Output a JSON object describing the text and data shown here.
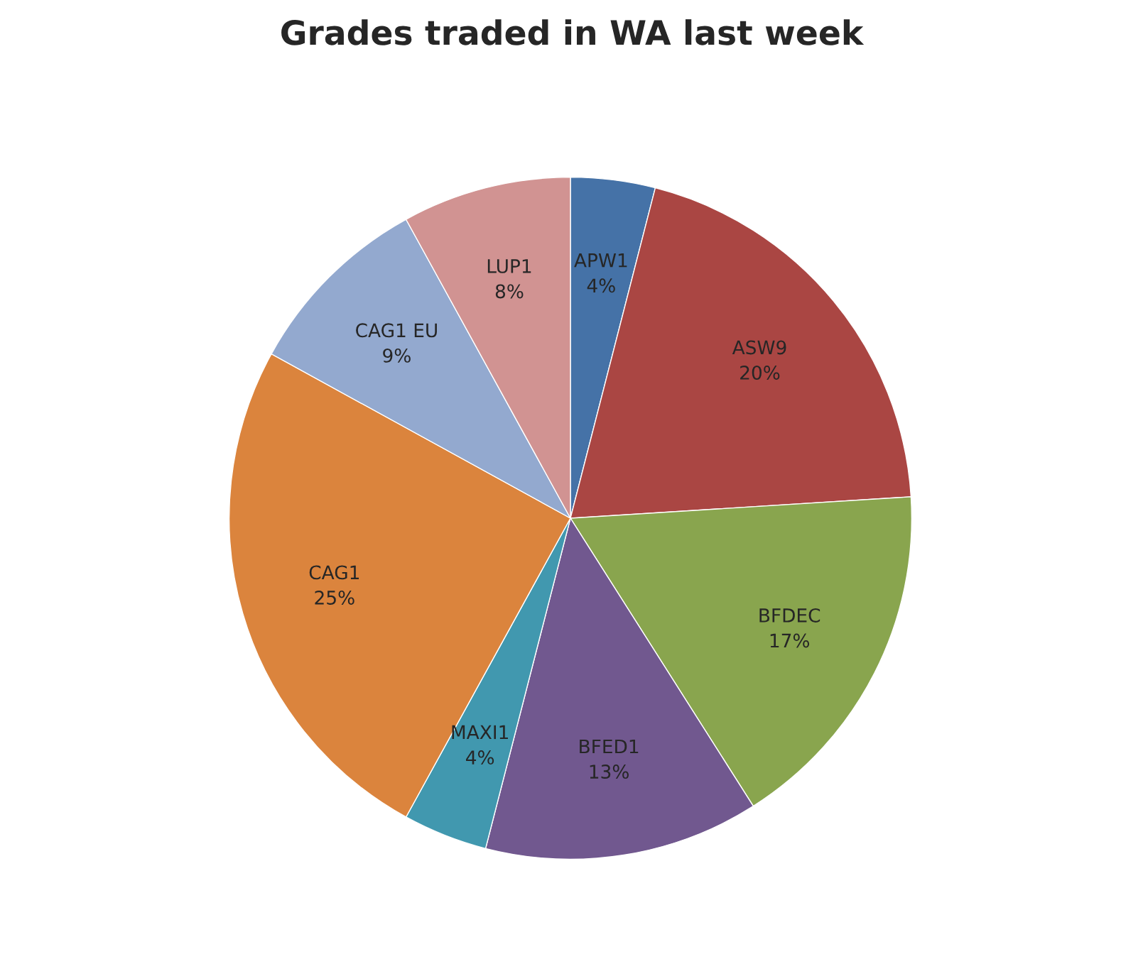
{
  "chart_data": {
    "type": "pie",
    "title": "Grades traded in WA last week",
    "categories": [
      "APW1",
      "ASW9",
      "BFDEC",
      "BFED1",
      "MAXI1",
      "CAG1",
      "CAG1 EU",
      "LUP1"
    ],
    "values": [
      4,
      20,
      17,
      13,
      4,
      25,
      9,
      8
    ],
    "colors": [
      "#4572a7",
      "#aa4643",
      "#89a54e",
      "#71588f",
      "#4198af",
      "#db843d",
      "#93a9cf",
      "#d19392"
    ],
    "value_labels": [
      "4%",
      "20%",
      "17%",
      "13%",
      "4%",
      "25%",
      "9%",
      "8%"
    ],
    "legend": false
  }
}
